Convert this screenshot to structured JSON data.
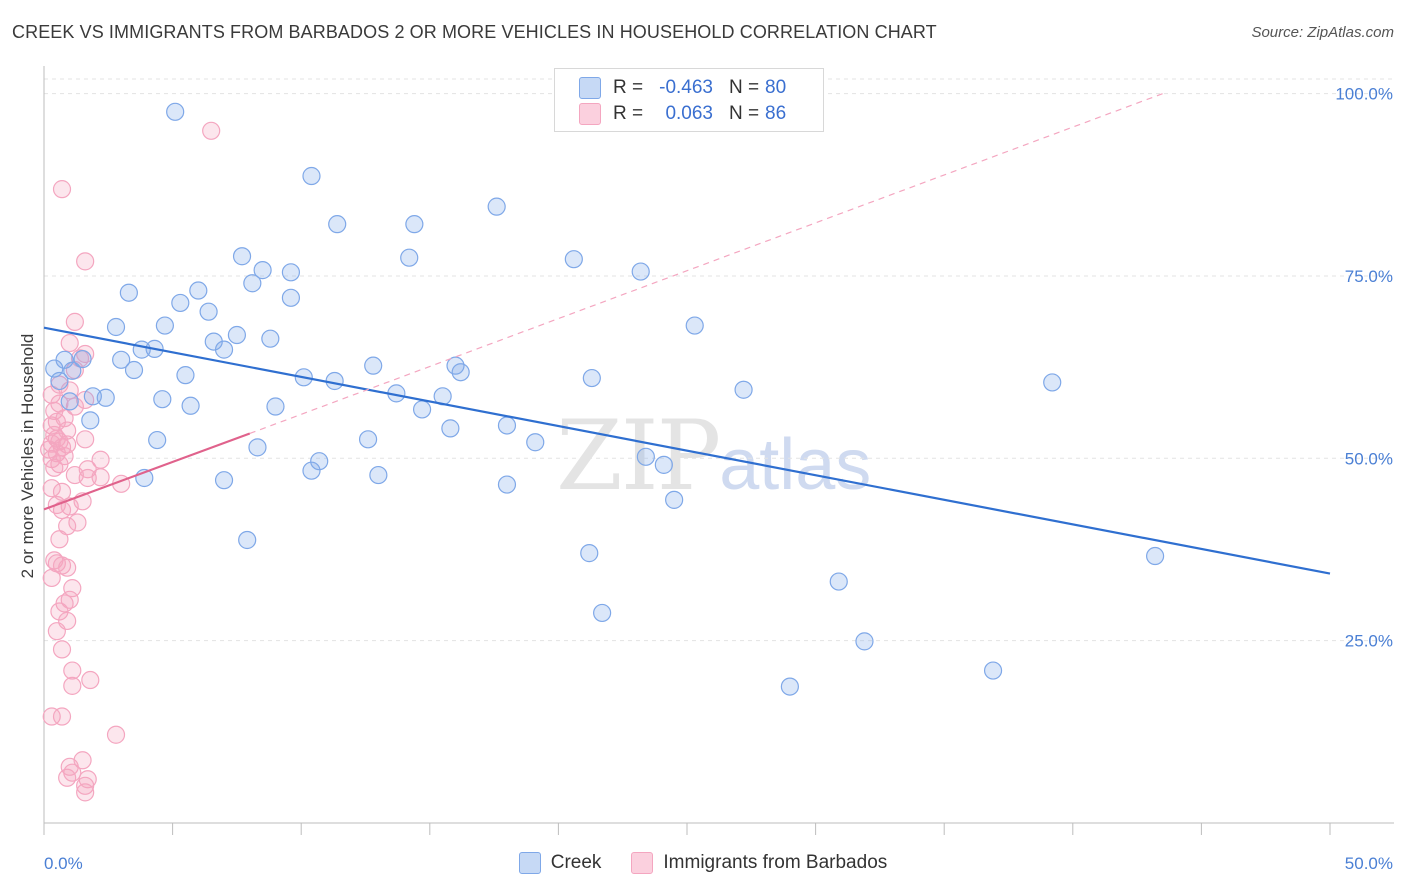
{
  "title": "CREEK VS IMMIGRANTS FROM BARBADOS 2 OR MORE VEHICLES IN HOUSEHOLD CORRELATION CHART",
  "source": "Source: ZipAtlas.com",
  "watermark": {
    "zip": "ZIP",
    "atlas": "atlas"
  },
  "legend": {
    "rows": [
      {
        "r_label": "R =",
        "r_value": "-0.463",
        "n_label": "N =",
        "n_value": "80",
        "color": "#7fa8e8"
      },
      {
        "r_label": "R =",
        "r_value": "0.063",
        "n_label": "N =",
        "n_value": "86",
        "color": "#f4a6c0"
      }
    ]
  },
  "bottom_legend": {
    "creek": "Creek",
    "barbados": "Immigrants from Barbados"
  },
  "colors": {
    "creek": "#7fa8e8",
    "creek_line": "#2f6fd0",
    "barbados": "#f4a6c0",
    "barbados_line": "#e0628c",
    "grid": "#e3e3e3"
  },
  "chart_data": {
    "type": "scatter",
    "title": "CREEK VS IMMIGRANTS FROM BARBADOS 2 OR MORE VEHICLES IN HOUSEHOLD CORRELATION CHART",
    "xlabel": "",
    "ylabel": "2 or more Vehicles in Household",
    "xlim": [
      0,
      50
    ],
    "ylim": [
      0,
      102
    ],
    "x_tick_labels": [
      "0.0%",
      "50.0%"
    ],
    "y_ticks": [
      25,
      50,
      75,
      100
    ],
    "y_tick_labels": [
      "25.0%",
      "50.0%",
      "75.0%",
      "100.0%"
    ],
    "grid": true,
    "legend_position": "top-center",
    "series": [
      {
        "name": "Creek",
        "points": [
          [
            5.1,
            97.5
          ],
          [
            10.4,
            88.7
          ],
          [
            17.6,
            84.5
          ],
          [
            11.4,
            82.1
          ],
          [
            14.4,
            82.1
          ],
          [
            7.7,
            77.7
          ],
          [
            14.2,
            77.5
          ],
          [
            20.6,
            77.3
          ],
          [
            23.2,
            75.6
          ],
          [
            8.5,
            75.8
          ],
          [
            9.6,
            75.5
          ],
          [
            8.1,
            74.0
          ],
          [
            6.0,
            73.0
          ],
          [
            3.3,
            72.7
          ],
          [
            9.6,
            72.0
          ],
          [
            5.3,
            71.3
          ],
          [
            6.4,
            70.1
          ],
          [
            4.7,
            68.2
          ],
          [
            2.8,
            68.0
          ],
          [
            25.3,
            68.2
          ],
          [
            7.5,
            66.9
          ],
          [
            6.6,
            66.0
          ],
          [
            8.8,
            66.4
          ],
          [
            4.3,
            65.0
          ],
          [
            3.8,
            64.9
          ],
          [
            0.8,
            63.5
          ],
          [
            1.5,
            63.6
          ],
          [
            3.0,
            63.5
          ],
          [
            7.0,
            64.9
          ],
          [
            12.8,
            62.7
          ],
          [
            16.0,
            62.7
          ],
          [
            0.4,
            62.3
          ],
          [
            1.1,
            62.0
          ],
          [
            3.5,
            62.1
          ],
          [
            5.5,
            61.4
          ],
          [
            10.1,
            61.1
          ],
          [
            16.2,
            61.8
          ],
          [
            21.3,
            61.0
          ],
          [
            11.3,
            60.6
          ],
          [
            0.6,
            60.6
          ],
          [
            39.2,
            60.4
          ],
          [
            27.2,
            59.4
          ],
          [
            13.7,
            58.9
          ],
          [
            1.9,
            58.5
          ],
          [
            2.4,
            58.3
          ],
          [
            4.6,
            58.1
          ],
          [
            15.5,
            58.5
          ],
          [
            1.0,
            57.8
          ],
          [
            9.0,
            57.1
          ],
          [
            5.7,
            57.2
          ],
          [
            14.7,
            56.7
          ],
          [
            1.8,
            55.2
          ],
          [
            15.8,
            54.1
          ],
          [
            18.0,
            54.5
          ],
          [
            12.6,
            52.6
          ],
          [
            4.4,
            52.5
          ],
          [
            19.1,
            52.2
          ],
          [
            8.3,
            51.5
          ],
          [
            23.4,
            50.2
          ],
          [
            10.7,
            49.6
          ],
          [
            24.1,
            49.1
          ],
          [
            10.4,
            48.3
          ],
          [
            13.0,
            47.7
          ],
          [
            7.0,
            47.0
          ],
          [
            3.9,
            47.3
          ],
          [
            18.0,
            46.4
          ],
          [
            24.5,
            44.3
          ],
          [
            7.9,
            38.8
          ],
          [
            43.2,
            36.6
          ],
          [
            21.2,
            37.0
          ],
          [
            30.9,
            33.1
          ],
          [
            21.7,
            28.8
          ],
          [
            31.9,
            24.9
          ],
          [
            36.9,
            20.9
          ],
          [
            29.0,
            18.7
          ]
        ],
        "trend": {
          "x": [
            0,
            50
          ],
          "y": [
            67.9,
            34.2
          ]
        }
      },
      {
        "name": "Immigrants from Barbados",
        "points": [
          [
            6.5,
            94.9
          ],
          [
            0.7,
            86.9
          ],
          [
            1.6,
            77.0
          ],
          [
            1.2,
            68.7
          ],
          [
            1.0,
            65.8
          ],
          [
            1.6,
            64.3
          ],
          [
            1.4,
            63.7
          ],
          [
            1.2,
            62.1
          ],
          [
            0.6,
            60.1
          ],
          [
            1.0,
            59.3
          ],
          [
            0.3,
            58.7
          ],
          [
            1.6,
            58.0
          ],
          [
            0.6,
            57.5
          ],
          [
            1.2,
            57.1
          ],
          [
            0.4,
            56.5
          ],
          [
            0.8,
            55.5
          ],
          [
            0.5,
            55.0
          ],
          [
            0.3,
            54.5
          ],
          [
            0.9,
            53.8
          ],
          [
            0.4,
            53.2
          ],
          [
            0.5,
            52.7
          ],
          [
            1.6,
            52.6
          ],
          [
            0.6,
            52.3
          ],
          [
            0.3,
            52.0
          ],
          [
            0.9,
            51.9
          ],
          [
            0.7,
            51.5
          ],
          [
            0.2,
            51.2
          ],
          [
            0.5,
            50.7
          ],
          [
            0.8,
            50.3
          ],
          [
            0.3,
            49.9
          ],
          [
            2.2,
            49.8
          ],
          [
            0.6,
            49.2
          ],
          [
            0.4,
            48.7
          ],
          [
            1.7,
            48.5
          ],
          [
            1.2,
            47.7
          ],
          [
            2.2,
            47.4
          ],
          [
            1.7,
            47.3
          ],
          [
            3.0,
            46.5
          ],
          [
            0.3,
            45.9
          ],
          [
            0.7,
            45.4
          ],
          [
            1.5,
            44.1
          ],
          [
            0.5,
            43.6
          ],
          [
            1.0,
            43.4
          ],
          [
            0.7,
            42.9
          ],
          [
            1.3,
            41.2
          ],
          [
            0.9,
            40.7
          ],
          [
            0.6,
            38.9
          ],
          [
            0.4,
            36.0
          ],
          [
            0.5,
            35.6
          ],
          [
            0.7,
            35.3
          ],
          [
            0.9,
            35.0
          ],
          [
            0.3,
            33.6
          ],
          [
            1.1,
            32.2
          ],
          [
            1.0,
            30.6
          ],
          [
            0.8,
            30.1
          ],
          [
            0.6,
            29.0
          ],
          [
            0.9,
            27.7
          ],
          [
            0.5,
            26.3
          ],
          [
            0.7,
            23.8
          ],
          [
            1.1,
            20.9
          ],
          [
            1.8,
            19.6
          ],
          [
            1.1,
            18.8
          ],
          [
            2.8,
            12.1
          ],
          [
            0.3,
            14.6
          ],
          [
            0.7,
            14.6
          ],
          [
            1.5,
            8.6
          ],
          [
            1.0,
            7.7
          ],
          [
            1.1,
            6.9
          ],
          [
            0.9,
            6.2
          ],
          [
            1.7,
            6.0
          ],
          [
            1.6,
            5.1
          ],
          [
            1.6,
            4.2
          ]
        ],
        "trend": {
          "x": [
            0,
            8
          ],
          "y": [
            43.0,
            53.4
          ]
        },
        "trend_extension": {
          "x": [
            8,
            43.5
          ],
          "y": [
            53.4,
            100.0
          ]
        }
      }
    ]
  }
}
